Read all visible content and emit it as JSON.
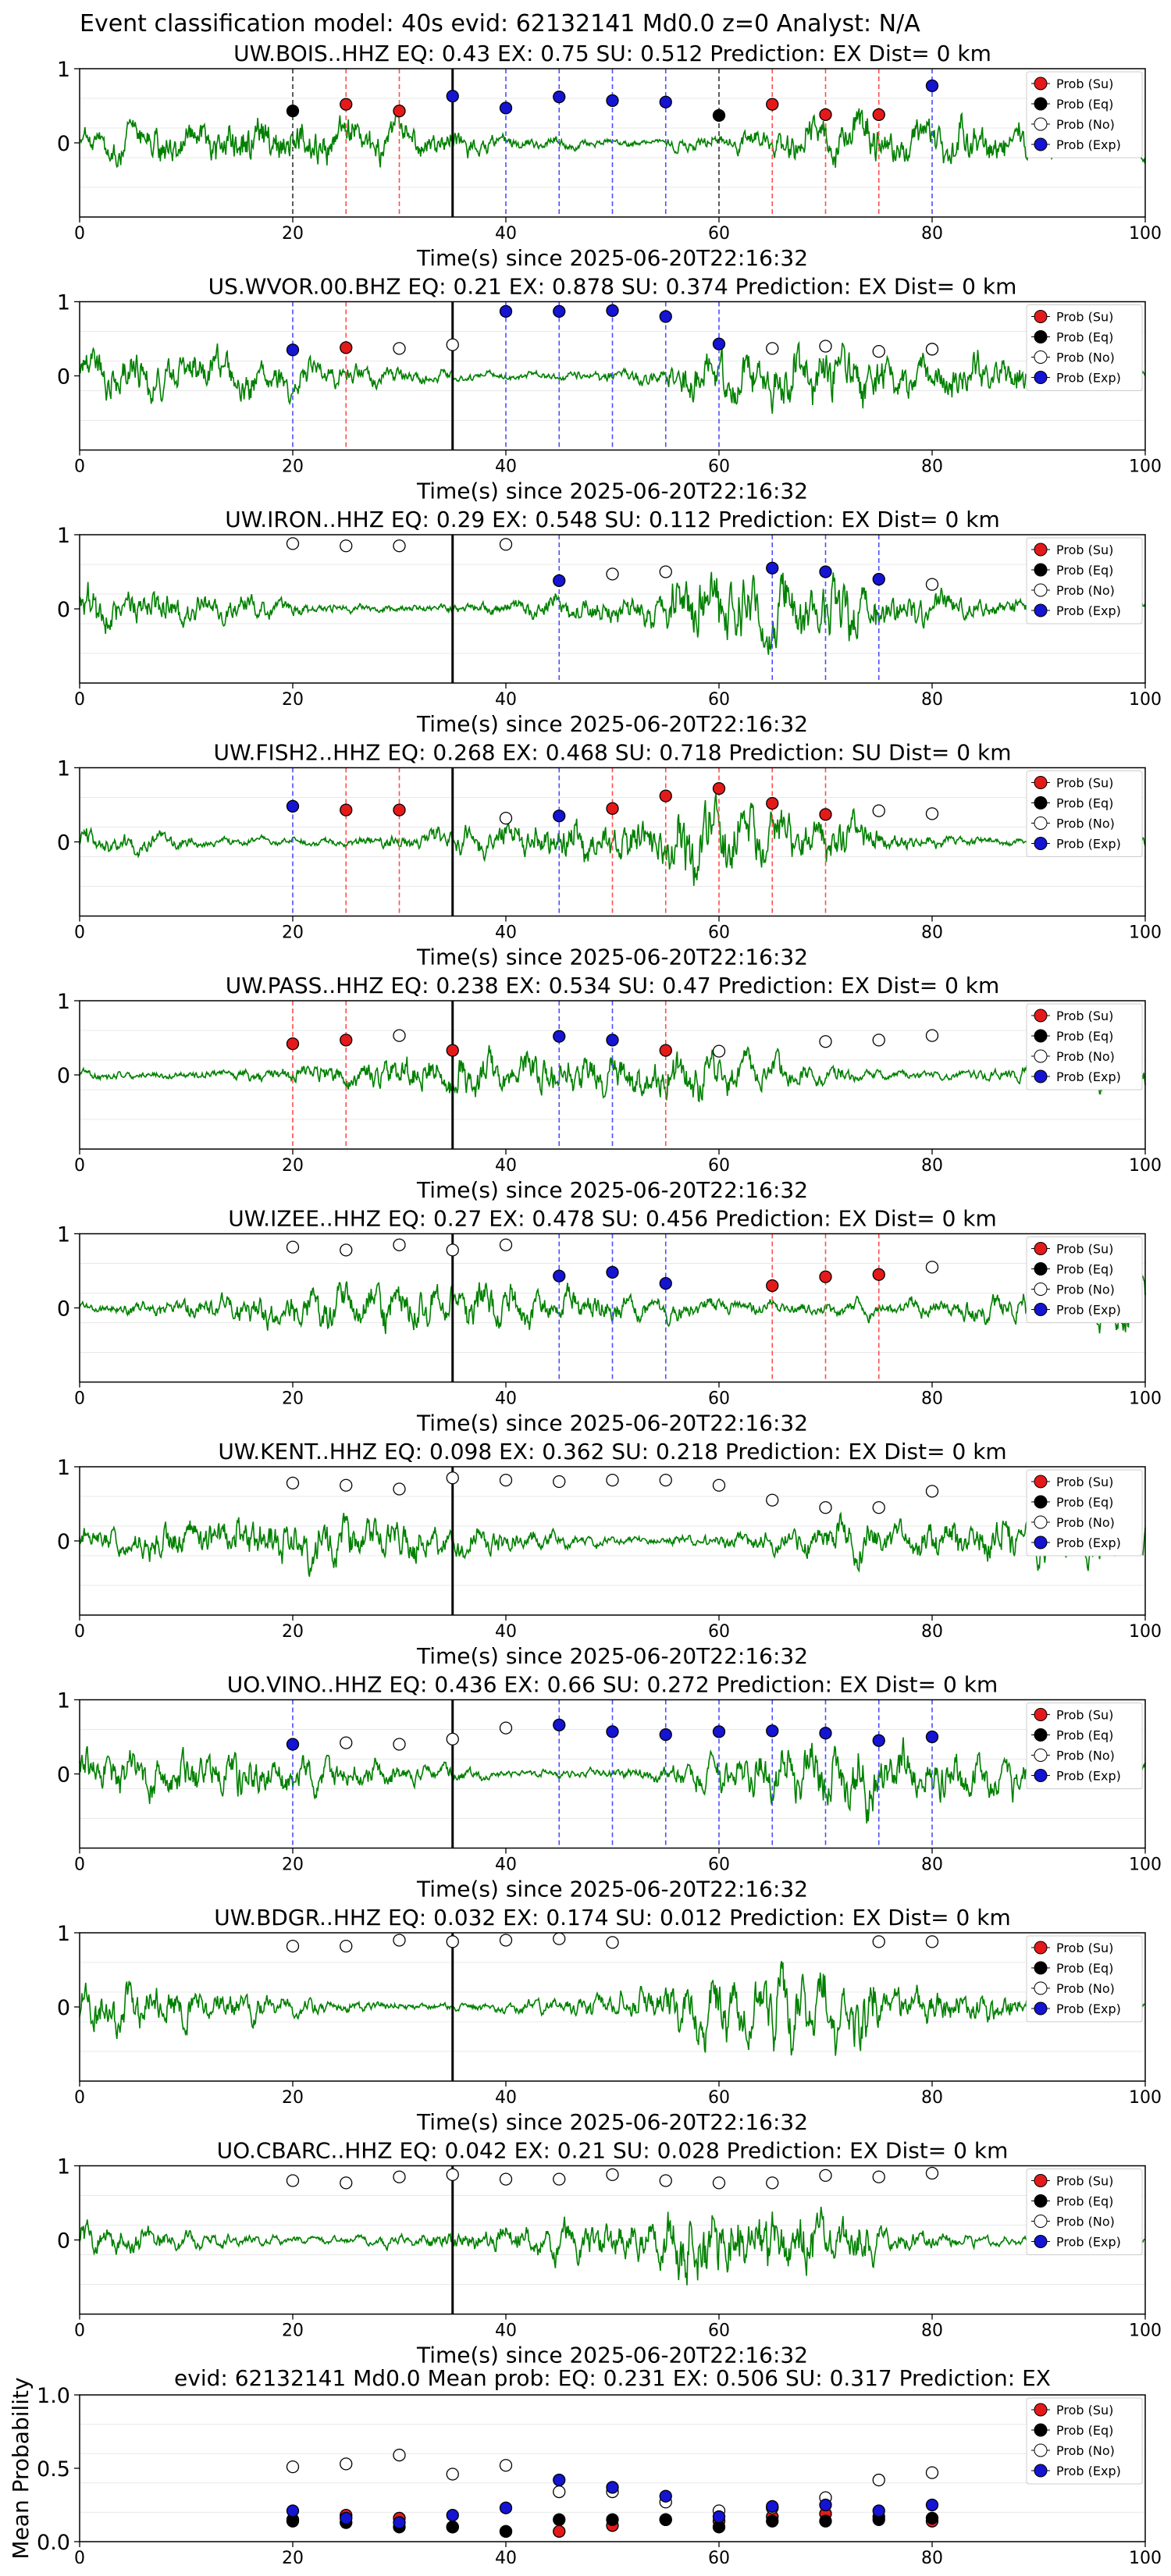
{
  "figure_title": "Event classification model: 40s evid: 62132141 Md0.0 z=0 Analyst: N/A",
  "legend": [
    {
      "label": "Prob (Su)",
      "fill": "#e41a1a"
    },
    {
      "label": "Prob (Eq)",
      "fill": "#000000"
    },
    {
      "label": "Prob (No)",
      "fill": "#ffffff"
    },
    {
      "label": "Prob (Exp)",
      "fill": "#1414d2"
    }
  ],
  "colors": {
    "waveform": "#008000",
    "su": "#e41a1a",
    "eq": "#000000",
    "no": "#ffffff",
    "exp": "#1414d2",
    "su_line": "#ff4d4d",
    "exp_line": "#4d4dff",
    "eq_line": "#333333"
  },
  "chart_data": [
    {
      "type": "line",
      "panel": 1,
      "title": "UW.BOIS..HHZ   EQ: 0.43  EX: 0.75  SU: 0.512   Prediction: EX    Dist= 0 km",
      "xlabel": "Time(s) since 2025-06-20T22:16:32",
      "xlim": [
        0,
        100
      ],
      "ylim": [
        -1,
        1
      ],
      "xticks": [
        "0",
        "20",
        "40",
        "60",
        "80",
        "100"
      ],
      "yticks": [
        "1",
        "0"
      ],
      "arrival_time": 35,
      "probability_markers": [
        {
          "t": 20,
          "cls": "eq",
          "p": 0.43
        },
        {
          "t": 25,
          "cls": "su",
          "p": 0.52
        },
        {
          "t": 30,
          "cls": "su",
          "p": 0.43
        },
        {
          "t": 35,
          "cls": "exp",
          "p": 0.63
        },
        {
          "t": 40,
          "cls": "exp",
          "p": 0.47
        },
        {
          "t": 45,
          "cls": "exp",
          "p": 0.62
        },
        {
          "t": 50,
          "cls": "exp",
          "p": 0.57
        },
        {
          "t": 55,
          "cls": "exp",
          "p": 0.55
        },
        {
          "t": 60,
          "cls": "eq",
          "p": 0.37
        },
        {
          "t": 65,
          "cls": "su",
          "p": 0.52
        },
        {
          "t": 70,
          "cls": "su",
          "p": 0.38
        },
        {
          "t": 75,
          "cls": "su",
          "p": 0.38
        },
        {
          "t": 80,
          "cls": "exp",
          "p": 0.77
        }
      ]
    },
    {
      "type": "line",
      "panel": 2,
      "title": "US.WVOR.00.BHZ   EQ: 0.21  EX: 0.878  SU: 0.374   Prediction: EX    Dist= 0 km",
      "xlabel": "Time(s) since 2025-06-20T22:16:32",
      "xlim": [
        0,
        100
      ],
      "ylim": [
        -1,
        1
      ],
      "xticks": [
        "0",
        "20",
        "40",
        "60",
        "80",
        "100"
      ],
      "yticks": [
        "1",
        "0"
      ],
      "arrival_time": 35,
      "probability_markers": [
        {
          "t": 20,
          "cls": "exp",
          "p": 0.35
        },
        {
          "t": 25,
          "cls": "su",
          "p": 0.38
        },
        {
          "t": 30,
          "cls": "no",
          "p": 0.37
        },
        {
          "t": 35,
          "cls": "no",
          "p": 0.42
        },
        {
          "t": 40,
          "cls": "exp",
          "p": 0.87
        },
        {
          "t": 45,
          "cls": "exp",
          "p": 0.87
        },
        {
          "t": 50,
          "cls": "exp",
          "p": 0.88
        },
        {
          "t": 55,
          "cls": "exp",
          "p": 0.8
        },
        {
          "t": 60,
          "cls": "exp",
          "p": 0.43
        },
        {
          "t": 65,
          "cls": "no",
          "p": 0.37
        },
        {
          "t": 70,
          "cls": "no",
          "p": 0.4
        },
        {
          "t": 75,
          "cls": "no",
          "p": 0.33
        },
        {
          "t": 80,
          "cls": "no",
          "p": 0.36
        }
      ]
    },
    {
      "type": "line",
      "panel": 3,
      "title": "UW.IRON..HHZ   EQ: 0.29  EX: 0.548  SU: 0.112   Prediction: EX    Dist= 0 km",
      "xlabel": "Time(s) since 2025-06-20T22:16:32",
      "xlim": [
        0,
        100
      ],
      "ylim": [
        -1,
        1
      ],
      "xticks": [
        "0",
        "20",
        "40",
        "60",
        "80",
        "100"
      ],
      "yticks": [
        "1",
        "0"
      ],
      "arrival_time": 35,
      "probability_markers": [
        {
          "t": 20,
          "cls": "no",
          "p": 0.88
        },
        {
          "t": 25,
          "cls": "no",
          "p": 0.85
        },
        {
          "t": 30,
          "cls": "no",
          "p": 0.85
        },
        {
          "t": 40,
          "cls": "no",
          "p": 0.87
        },
        {
          "t": 45,
          "cls": "exp",
          "p": 0.38
        },
        {
          "t": 50,
          "cls": "no",
          "p": 0.47
        },
        {
          "t": 55,
          "cls": "no",
          "p": 0.5
        },
        {
          "t": 65,
          "cls": "exp",
          "p": 0.55
        },
        {
          "t": 70,
          "cls": "exp",
          "p": 0.5
        },
        {
          "t": 75,
          "cls": "exp",
          "p": 0.4
        },
        {
          "t": 80,
          "cls": "no",
          "p": 0.33
        }
      ]
    },
    {
      "type": "line",
      "panel": 4,
      "title": "UW.FISH2..HHZ   EQ: 0.268  EX: 0.468  SU: 0.718   Prediction: SU    Dist= 0 km",
      "xlabel": "Time(s) since 2025-06-20T22:16:32",
      "xlim": [
        0,
        100
      ],
      "ylim": [
        -1,
        1
      ],
      "xticks": [
        "0",
        "20",
        "40",
        "60",
        "80",
        "100"
      ],
      "yticks": [
        "1",
        "0"
      ],
      "arrival_time": 35,
      "probability_markers": [
        {
          "t": 20,
          "cls": "exp",
          "p": 0.48
        },
        {
          "t": 25,
          "cls": "su",
          "p": 0.43
        },
        {
          "t": 30,
          "cls": "su",
          "p": 0.43
        },
        {
          "t": 40,
          "cls": "no",
          "p": 0.32
        },
        {
          "t": 45,
          "cls": "exp",
          "p": 0.35
        },
        {
          "t": 50,
          "cls": "su",
          "p": 0.45
        },
        {
          "t": 55,
          "cls": "su",
          "p": 0.62
        },
        {
          "t": 60,
          "cls": "su",
          "p": 0.72
        },
        {
          "t": 65,
          "cls": "su",
          "p": 0.52
        },
        {
          "t": 70,
          "cls": "su",
          "p": 0.37
        },
        {
          "t": 75,
          "cls": "no",
          "p": 0.42
        },
        {
          "t": 80,
          "cls": "no",
          "p": 0.38
        }
      ]
    },
    {
      "type": "line",
      "panel": 5,
      "title": "UW.PASS..HHZ   EQ: 0.238  EX: 0.534  SU: 0.47   Prediction: EX    Dist= 0 km",
      "xlabel": "Time(s) since 2025-06-20T22:16:32",
      "xlim": [
        0,
        100
      ],
      "ylim": [
        -1,
        1
      ],
      "xticks": [
        "0",
        "20",
        "40",
        "60",
        "80",
        "100"
      ],
      "yticks": [
        "1",
        "0"
      ],
      "arrival_time": 35,
      "probability_markers": [
        {
          "t": 20,
          "cls": "su",
          "p": 0.42
        },
        {
          "t": 25,
          "cls": "su",
          "p": 0.47
        },
        {
          "t": 30,
          "cls": "no",
          "p": 0.53
        },
        {
          "t": 35,
          "cls": "su",
          "p": 0.33
        },
        {
          "t": 45,
          "cls": "exp",
          "p": 0.52
        },
        {
          "t": 50,
          "cls": "exp",
          "p": 0.47
        },
        {
          "t": 55,
          "cls": "su",
          "p": 0.33
        },
        {
          "t": 60,
          "cls": "no",
          "p": 0.32
        },
        {
          "t": 70,
          "cls": "no",
          "p": 0.45
        },
        {
          "t": 75,
          "cls": "no",
          "p": 0.47
        },
        {
          "t": 80,
          "cls": "no",
          "p": 0.53
        }
      ]
    },
    {
      "type": "line",
      "panel": 6,
      "title": "UW.IZEE..HHZ   EQ: 0.27  EX: 0.478  SU: 0.456   Prediction: EX    Dist= 0 km",
      "xlabel": "Time(s) since 2025-06-20T22:16:32",
      "xlim": [
        0,
        100
      ],
      "ylim": [
        -1,
        1
      ],
      "xticks": [
        "0",
        "20",
        "40",
        "60",
        "80",
        "100"
      ],
      "yticks": [
        "1",
        "0"
      ],
      "arrival_time": 35,
      "probability_markers": [
        {
          "t": 20,
          "cls": "no",
          "p": 0.82
        },
        {
          "t": 25,
          "cls": "no",
          "p": 0.78
        },
        {
          "t": 30,
          "cls": "no",
          "p": 0.85
        },
        {
          "t": 35,
          "cls": "no",
          "p": 0.78
        },
        {
          "t": 40,
          "cls": "no",
          "p": 0.85
        },
        {
          "t": 45,
          "cls": "exp",
          "p": 0.43
        },
        {
          "t": 50,
          "cls": "exp",
          "p": 0.48
        },
        {
          "t": 55,
          "cls": "exp",
          "p": 0.33
        },
        {
          "t": 65,
          "cls": "su",
          "p": 0.3
        },
        {
          "t": 70,
          "cls": "su",
          "p": 0.42
        },
        {
          "t": 75,
          "cls": "su",
          "p": 0.45
        },
        {
          "t": 80,
          "cls": "no",
          "p": 0.55
        }
      ]
    },
    {
      "type": "line",
      "panel": 7,
      "title": "UW.KENT..HHZ   EQ: 0.098  EX: 0.362  SU: 0.218   Prediction: EX    Dist= 0 km",
      "xlabel": "Time(s) since 2025-06-20T22:16:32",
      "xlim": [
        0,
        100
      ],
      "ylim": [
        -1,
        1
      ],
      "xticks": [
        "0",
        "20",
        "40",
        "60",
        "80",
        "100"
      ],
      "yticks": [
        "1",
        "0"
      ],
      "arrival_time": 35,
      "probability_markers": [
        {
          "t": 20,
          "cls": "no",
          "p": 0.78
        },
        {
          "t": 25,
          "cls": "no",
          "p": 0.75
        },
        {
          "t": 30,
          "cls": "no",
          "p": 0.7
        },
        {
          "t": 35,
          "cls": "no",
          "p": 0.85
        },
        {
          "t": 40,
          "cls": "no",
          "p": 0.82
        },
        {
          "t": 45,
          "cls": "no",
          "p": 0.8
        },
        {
          "t": 50,
          "cls": "no",
          "p": 0.82
        },
        {
          "t": 55,
          "cls": "no",
          "p": 0.82
        },
        {
          "t": 60,
          "cls": "no",
          "p": 0.75
        },
        {
          "t": 65,
          "cls": "no",
          "p": 0.55
        },
        {
          "t": 70,
          "cls": "no",
          "p": 0.45
        },
        {
          "t": 75,
          "cls": "no",
          "p": 0.45
        },
        {
          "t": 80,
          "cls": "no",
          "p": 0.67
        }
      ]
    },
    {
      "type": "line",
      "panel": 8,
      "title": "UO.VINO..HHZ   EQ: 0.436  EX: 0.66  SU: 0.272   Prediction: EX    Dist= 0 km",
      "xlabel": "Time(s) since 2025-06-20T22:16:32",
      "xlim": [
        0,
        100
      ],
      "ylim": [
        -1,
        1
      ],
      "xticks": [
        "0",
        "20",
        "40",
        "60",
        "80",
        "100"
      ],
      "yticks": [
        "1",
        "0"
      ],
      "arrival_time": 35,
      "probability_markers": [
        {
          "t": 20,
          "cls": "exp",
          "p": 0.4
        },
        {
          "t": 25,
          "cls": "no",
          "p": 0.42
        },
        {
          "t": 30,
          "cls": "no",
          "p": 0.4
        },
        {
          "t": 35,
          "cls": "no",
          "p": 0.47
        },
        {
          "t": 40,
          "cls": "no",
          "p": 0.62
        },
        {
          "t": 45,
          "cls": "exp",
          "p": 0.66
        },
        {
          "t": 50,
          "cls": "exp",
          "p": 0.57
        },
        {
          "t": 55,
          "cls": "exp",
          "p": 0.53
        },
        {
          "t": 60,
          "cls": "exp",
          "p": 0.57
        },
        {
          "t": 65,
          "cls": "exp",
          "p": 0.58
        },
        {
          "t": 70,
          "cls": "exp",
          "p": 0.55
        },
        {
          "t": 75,
          "cls": "exp",
          "p": 0.45
        },
        {
          "t": 80,
          "cls": "exp",
          "p": 0.5
        }
      ]
    },
    {
      "type": "line",
      "panel": 9,
      "title": "UW.BDGR..HHZ   EQ: 0.032  EX: 0.174  SU: 0.012   Prediction: EX    Dist= 0 km",
      "xlabel": "Time(s) since 2025-06-20T22:16:32",
      "xlim": [
        0,
        100
      ],
      "ylim": [
        -1,
        1
      ],
      "xticks": [
        "0",
        "20",
        "40",
        "60",
        "80",
        "100"
      ],
      "yticks": [
        "1",
        "0"
      ],
      "arrival_time": 35,
      "probability_markers": [
        {
          "t": 20,
          "cls": "no",
          "p": 0.82
        },
        {
          "t": 25,
          "cls": "no",
          "p": 0.82
        },
        {
          "t": 30,
          "cls": "no",
          "p": 0.9
        },
        {
          "t": 35,
          "cls": "no",
          "p": 0.88
        },
        {
          "t": 40,
          "cls": "no",
          "p": 0.9
        },
        {
          "t": 45,
          "cls": "no",
          "p": 0.92
        },
        {
          "t": 50,
          "cls": "no",
          "p": 0.87
        },
        {
          "t": 75,
          "cls": "no",
          "p": 0.88
        },
        {
          "t": 80,
          "cls": "no",
          "p": 0.88
        }
      ]
    },
    {
      "type": "line",
      "panel": 10,
      "title": "UO.CBARC..HHZ   EQ: 0.042  EX: 0.21  SU: 0.028   Prediction: EX    Dist= 0 km",
      "xlabel": "Time(s) since 2025-06-20T22:16:32",
      "xlim": [
        0,
        100
      ],
      "ylim": [
        -1,
        1
      ],
      "xticks": [
        "0",
        "20",
        "40",
        "60",
        "80",
        "100"
      ],
      "yticks": [
        "1",
        "0"
      ],
      "arrival_time": 35,
      "probability_markers": [
        {
          "t": 20,
          "cls": "no",
          "p": 0.8
        },
        {
          "t": 25,
          "cls": "no",
          "p": 0.77
        },
        {
          "t": 30,
          "cls": "no",
          "p": 0.85
        },
        {
          "t": 35,
          "cls": "no",
          "p": 0.88
        },
        {
          "t": 40,
          "cls": "no",
          "p": 0.82
        },
        {
          "t": 45,
          "cls": "no",
          "p": 0.82
        },
        {
          "t": 50,
          "cls": "no",
          "p": 0.88
        },
        {
          "t": 55,
          "cls": "no",
          "p": 0.8
        },
        {
          "t": 60,
          "cls": "no",
          "p": 0.77
        },
        {
          "t": 65,
          "cls": "no",
          "p": 0.77
        },
        {
          "t": 70,
          "cls": "no",
          "p": 0.87
        },
        {
          "t": 75,
          "cls": "no",
          "p": 0.85
        },
        {
          "t": 80,
          "cls": "no",
          "p": 0.9
        }
      ]
    },
    {
      "type": "scatter",
      "panel": 11,
      "title": "evid: 62132141   Md0.0   Mean prob:   EQ: 0.231  EX: 0.506  SU: 0.317   Prediction: EX",
      "xlabel": "",
      "ylabel": "Mean Probability",
      "xlim": [
        0,
        100
      ],
      "ylim": [
        0,
        1
      ],
      "xticks": [
        "0",
        "20",
        "40",
        "60",
        "80",
        "100"
      ],
      "yticks": [
        "0.0",
        "0.5",
        "1.0"
      ],
      "x": [
        20,
        25,
        30,
        35,
        40,
        45,
        50,
        55,
        60,
        65,
        70,
        75,
        80
      ],
      "series": [
        {
          "name": "Prob (Su)",
          "cls": "su",
          "values": [
            0.15,
            0.18,
            0.16,
            0.1,
            0.07,
            0.07,
            0.11,
            0.15,
            0.14,
            0.17,
            0.19,
            0.17,
            0.14
          ]
        },
        {
          "name": "Prob (Eq)",
          "cls": "eq",
          "values": [
            0.14,
            0.13,
            0.1,
            0.1,
            0.07,
            0.15,
            0.15,
            0.15,
            0.1,
            0.14,
            0.14,
            0.15,
            0.16
          ]
        },
        {
          "name": "Prob (No)",
          "cls": "no",
          "values": [
            0.51,
            0.53,
            0.59,
            0.46,
            0.52,
            0.34,
            0.34,
            0.27,
            0.21,
            0.23,
            0.3,
            0.42,
            0.47
          ]
        },
        {
          "name": "Prob (Exp)",
          "cls": "exp",
          "values": [
            0.21,
            0.16,
            0.13,
            0.18,
            0.23,
            0.42,
            0.37,
            0.31,
            0.17,
            0.24,
            0.25,
            0.21,
            0.25
          ]
        }
      ]
    }
  ]
}
